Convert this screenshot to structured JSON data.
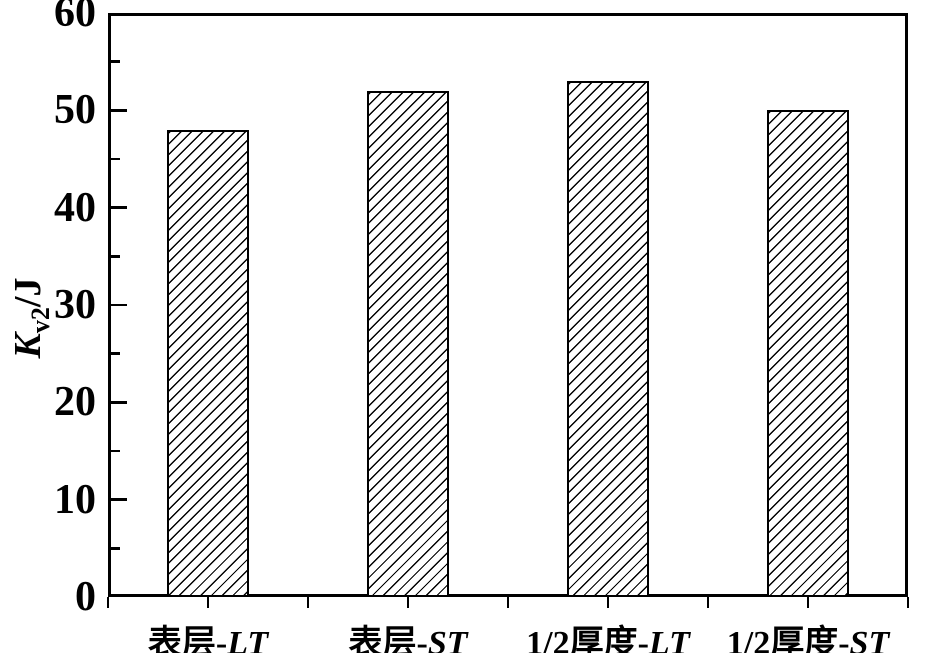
{
  "figure": {
    "background": "#ffffff",
    "axis_color": "#000000"
  },
  "chart_data": {
    "type": "bar",
    "title": "",
    "xlabel": "",
    "ylabel": "Kv2/J",
    "ylabel_parts": {
      "italic_main": "K",
      "subscript": "v2",
      "rest": "/J"
    },
    "categories": [
      "表层-LT",
      "表层-ST",
      "1/2厚度-LT",
      "1/2厚度-ST"
    ],
    "category_parts": [
      {
        "prefix": "表层-",
        "italic": "LT"
      },
      {
        "prefix": "表层-",
        "italic": "ST"
      },
      {
        "prefix": "1/2厚度-",
        "italic": "LT"
      },
      {
        "prefix": "1/2厚度-",
        "italic": "ST"
      }
    ],
    "values": [
      48,
      52,
      53,
      50
    ],
    "ylim": [
      0,
      60
    ],
    "y_major_tick_step": 10,
    "y_minor_tick_step": 5,
    "y_tick_labels": [
      "0",
      "10",
      "20",
      "30",
      "40",
      "50",
      "60"
    ],
    "bar_fill": "white with black diagonal hatch (/)",
    "bar_edge_color": "#000000",
    "grid": "off",
    "legend": "none"
  }
}
